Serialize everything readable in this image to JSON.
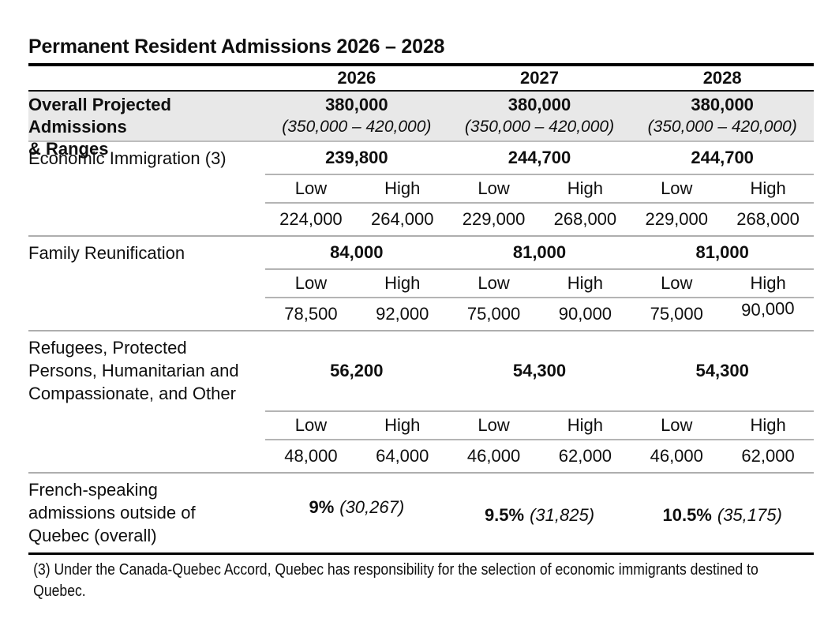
{
  "title": "Permanent Resident Admissions 2026 – 2028",
  "table": {
    "year_headers": [
      "2026",
      "2027",
      "2028"
    ],
    "sub_headers": {
      "low": "Low",
      "high": "High"
    },
    "overall": {
      "label_lines": [
        "Overall Projected Admissions",
        "& Ranges"
      ],
      "values": [
        "380,000",
        "380,000",
        "380,000"
      ],
      "ranges": [
        "(350,000 – 420,000)",
        "(350,000 – 420,000)",
        "(350,000 – 420,000)"
      ]
    },
    "sections": [
      {
        "label_lines": [
          "Economic Immigration (3)"
        ],
        "values": [
          "239,800",
          "244,700",
          "244,700"
        ],
        "low": [
          "224,000",
          "229,000",
          "229,000"
        ],
        "high": [
          "264,000",
          "268,000",
          "268,000"
        ]
      },
      {
        "label_lines": [
          "Family Reunification"
        ],
        "values": [
          "84,000",
          "81,000",
          "81,000"
        ],
        "low": [
          "78,500",
          "75,000",
          "75,000"
        ],
        "high": [
          "92,000",
          "90,000",
          "90,000"
        ]
      },
      {
        "label_lines": [
          "Refugees, Protected",
          "Persons, Humanitarian and",
          "Compassionate, and Other"
        ],
        "values": [
          "56,200",
          "54,300",
          "54,300"
        ],
        "low": [
          "48,000",
          "46,000",
          "46,000"
        ],
        "high": [
          "64,000",
          "62,000",
          "62,000"
        ]
      }
    ],
    "french": {
      "label_lines": [
        "French-speaking",
        "admissions outside of",
        "Quebec (overall)"
      ],
      "percents": [
        "9%",
        "9.5%",
        "10.5%"
      ],
      "counts": [
        "(30,267)",
        "(31,825)",
        "(35,175)"
      ]
    }
  },
  "footnote": {
    "lines": [
      "(3) Under the Canada-Quebec Accord, Quebec has responsibility for the selection of economic immigrants destined to",
      "Quebec."
    ]
  },
  "colors": {
    "band_gray": "#e8e8e8",
    "rule_black": "#000000",
    "rule_gray": "#aeaeae",
    "text": "#0f0f0f"
  }
}
